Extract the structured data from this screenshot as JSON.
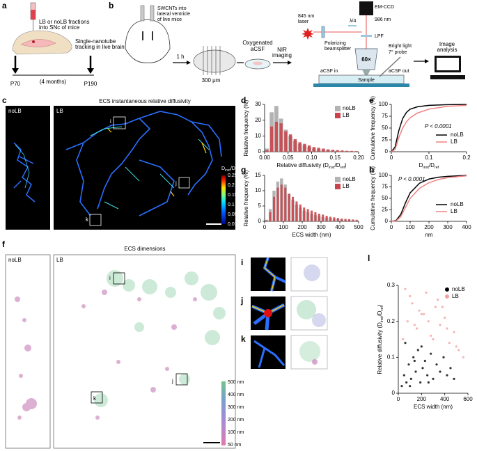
{
  "panels": {
    "letters": [
      "a",
      "b",
      "c",
      "d",
      "e",
      "f",
      "g",
      "h",
      "i",
      "j",
      "k",
      "l"
    ],
    "a": {
      "injection": [
        "LB or noLB fractions",
        "into SNc of mice"
      ],
      "tracking": [
        "Single-nanotube",
        "tracking in live brain"
      ],
      "start": "P70",
      "gap": "(4 months)",
      "end": "P190"
    },
    "b": {
      "injection": [
        "SWCNTs into",
        "lateral ventricle",
        "of live mice"
      ],
      "time": "1 h",
      "slice": "300 μm",
      "acsf": [
        "Oxygenated",
        "aCSF"
      ],
      "nir": [
        "NIR",
        "imaging"
      ],
      "laser": [
        "845 nm",
        "laser"
      ],
      "splitter": [
        "Polarizing",
        "beamsplitter"
      ],
      "wave": "λ/4",
      "camera": "EM-CCD",
      "emission": "986 nm",
      "filter": "LPF",
      "objective": "60×",
      "inlet": "aCSF in",
      "sample": "Sample",
      "probe": [
        "Bright light",
        "7° probe",
        "aCSF out"
      ],
      "analysis": [
        "Image",
        "analysis"
      ]
    },
    "c": {
      "title": "ECS instantaneous relative diffusivity",
      "left": "noLB",
      "right": "LB",
      "boxes": [
        "i",
        "j",
        "k"
      ],
      "scale_title": [
        "D",
        "inst",
        "/D",
        "ref"
      ],
      "scale": [
        "0.25",
        "0.2",
        "0.15",
        "0.1",
        "0.05",
        "0.01"
      ]
    },
    "f": {
      "title": "ECS dimensions",
      "left": "noLB",
      "right": "LB",
      "boxes": [
        "i",
        "j",
        "k"
      ],
      "scale": [
        "500 nm",
        "400 nm",
        "300 nm",
        "200 nm",
        "100 nm",
        "50 nm"
      ]
    }
  },
  "chart_data": [
    {
      "type": "histogram",
      "ylabel": [
        "Relative frequency (%)"
      ],
      "xlabel": [
        "Relative diffusivity (D",
        "inst",
        "/D",
        "ref",
        ")"
      ],
      "bins": [
        0,
        0.01,
        0.02,
        0.03,
        0.04,
        0.05,
        0.06,
        0.07,
        0.08,
        0.09,
        0.1,
        0.11,
        0.12,
        0.13,
        0.14,
        0.15,
        0.16,
        0.17,
        0.18,
        0.19,
        0.2
      ],
      "series": [
        {
          "name": "noLB",
          "color": "#b3b3b3",
          "values": [
            2,
            25,
            29,
            21,
            14,
            10,
            7,
            5,
            4,
            3,
            2,
            1.5,
            1.2,
            1,
            0.8,
            0.6,
            0.5,
            0.4,
            0.3,
            0.2
          ]
        },
        {
          "name": "LB",
          "color": "#c8434a",
          "values": [
            1,
            16,
            19,
            18,
            13,
            11,
            8,
            6,
            5,
            4,
            3,
            2.5,
            2,
            1.5,
            1.2,
            1,
            0.8,
            0.6,
            0.5,
            0.4
          ]
        }
      ],
      "xlim": [
        0,
        0.2
      ],
      "xticks": [
        {
          "value": 0,
          "label": "0.00"
        },
        {
          "value": 0.05,
          "label": "0.05"
        },
        {
          "value": 0.1,
          "label": "0.10"
        },
        {
          "value": 0.15,
          "label": "0.15"
        },
        {
          "value": 0.2,
          "label": "0.20"
        }
      ],
      "ylim": [
        0,
        30
      ],
      "yticks": [
        0,
        10,
        20,
        30
      ],
      "legend": "upper right"
    },
    {
      "type": "line",
      "ylabel": [
        "Cumulative frequency (%)"
      ],
      "xlabel": [
        "D",
        "inst",
        "/D",
        "ref"
      ],
      "annotation": "P < 0.0001",
      "x": [
        0,
        0.01,
        0.02,
        0.03,
        0.04,
        0.05,
        0.07,
        0.1,
        0.15,
        0.2
      ],
      "series": [
        {
          "name": "noLB",
          "color": "#000000",
          "values": [
            0,
            10,
            45,
            70,
            83,
            90,
            95,
            98,
            99.5,
            100
          ]
        },
        {
          "name": "LB",
          "color": "#f08080",
          "values": [
            0,
            5,
            30,
            50,
            63,
            72,
            82,
            90,
            96,
            98
          ]
        }
      ],
      "xlim": [
        0,
        0.2
      ],
      "xticks": [
        0,
        0.1,
        0.2
      ],
      "ylim": [
        0,
        100
      ],
      "yticks": [
        0,
        25,
        50,
        75,
        100
      ],
      "legend": "lower right"
    },
    {
      "type": "histogram",
      "ylabel": [
        "Relative frequency (%)"
      ],
      "xlabel": [
        "ECS width (nm)"
      ],
      "bins": [
        0,
        20,
        40,
        60,
        80,
        100,
        120,
        140,
        160,
        180,
        200,
        220,
        240,
        260,
        280,
        300,
        320,
        340,
        360,
        380,
        400,
        420,
        440,
        460,
        480,
        500
      ],
      "series": [
        {
          "name": "noLB",
          "color": "#b3b3b3",
          "values": [
            0.5,
            4,
            10,
            13,
            14,
            12,
            9,
            7,
            5.5,
            4.5,
            3.5,
            3,
            2.5,
            2,
            1.7,
            1.4,
            1.2,
            1,
            0.8,
            0.7,
            0.6,
            0.5,
            0.4,
            0.3,
            0.3
          ]
        },
        {
          "name": "LB",
          "color": "#c8434a",
          "values": [
            0.3,
            3,
            8,
            11,
            12,
            11,
            9,
            8,
            6.5,
            5.5,
            4.5,
            4,
            3.5,
            3,
            2.5,
            2.2,
            1.8,
            1.5,
            1.3,
            1.1,
            0.9,
            0.8,
            0.7,
            0.6,
            0.5
          ]
        }
      ],
      "xlim": [
        0,
        500
      ],
      "xticks": [
        0,
        100,
        200,
        300,
        400,
        500
      ],
      "ylim": [
        0,
        15
      ],
      "yticks": [
        0,
        5,
        10,
        15
      ],
      "legend": "upper right"
    },
    {
      "type": "line",
      "ylabel": [
        "Cumulative frequency (%)"
      ],
      "xlabel": [
        "nm"
      ],
      "annotation": "P < 0.0001",
      "x": [
        0,
        25,
        50,
        75,
        100,
        150,
        200,
        250,
        300,
        400
      ],
      "series": [
        {
          "name": "noLB",
          "color": "#000000",
          "values": [
            0,
            2,
            15,
            40,
            62,
            83,
            92,
            96,
            98,
            100
          ]
        },
        {
          "name": "LB",
          "color": "#f08080",
          "values": [
            0,
            1,
            10,
            30,
            50,
            72,
            84,
            91,
            95,
            99
          ]
        }
      ],
      "xlim": [
        0,
        400
      ],
      "xticks": [
        0,
        100,
        200,
        300,
        400
      ],
      "ylim": [
        0,
        100
      ],
      "yticks": [
        0,
        25,
        50,
        75,
        100
      ],
      "legend": "lower right"
    },
    {
      "type": "scatter",
      "ylabel": [
        "Relative diffusivity (D",
        "inst",
        "/D",
        "ref",
        ")"
      ],
      "xlabel": [
        "ECS width (nm)"
      ],
      "series": [
        {
          "name": "noLB",
          "color": "#000000",
          "x": [
            30,
            50,
            70,
            90,
            110,
            130,
            150,
            170,
            190,
            210,
            230,
            250,
            280,
            300,
            330,
            360,
            390,
            420,
            450,
            480,
            60,
            100,
            140,
            200,
            260
          ],
          "values": [
            0.02,
            0.05,
            0.03,
            0.08,
            0.04,
            0.1,
            0.06,
            0.12,
            0.03,
            0.07,
            0.09,
            0.05,
            0.11,
            0.04,
            0.08,
            0.06,
            0.1,
            0.05,
            0.07,
            0.04,
            0.14,
            0.02,
            0.09,
            0.13,
            0.03
          ]
        },
        {
          "name": "LB",
          "color": "#f4a0a0",
          "x": [
            40,
            80,
            120,
            160,
            200,
            240,
            280,
            320,
            360,
            400,
            440,
            480,
            520,
            560,
            100,
            180,
            260,
            340,
            420,
            500,
            60,
            140,
            220,
            300,
            380
          ],
          "values": [
            0.15,
            0.2,
            0.25,
            0.18,
            0.22,
            0.28,
            0.16,
            0.24,
            0.19,
            0.21,
            0.14,
            0.17,
            0.12,
            0.1,
            0.27,
            0.23,
            0.2,
            0.26,
            0.18,
            0.13,
            0.29,
            0.19,
            0.22,
            0.15,
            0.24
          ]
        }
      ],
      "xlim": [
        0,
        600
      ],
      "xticks": [
        0,
        200,
        400,
        600
      ],
      "ylim": [
        0,
        0.3
      ],
      "yticks": [
        0,
        0.1,
        0.2,
        0.3
      ],
      "legend": "upper right"
    }
  ]
}
